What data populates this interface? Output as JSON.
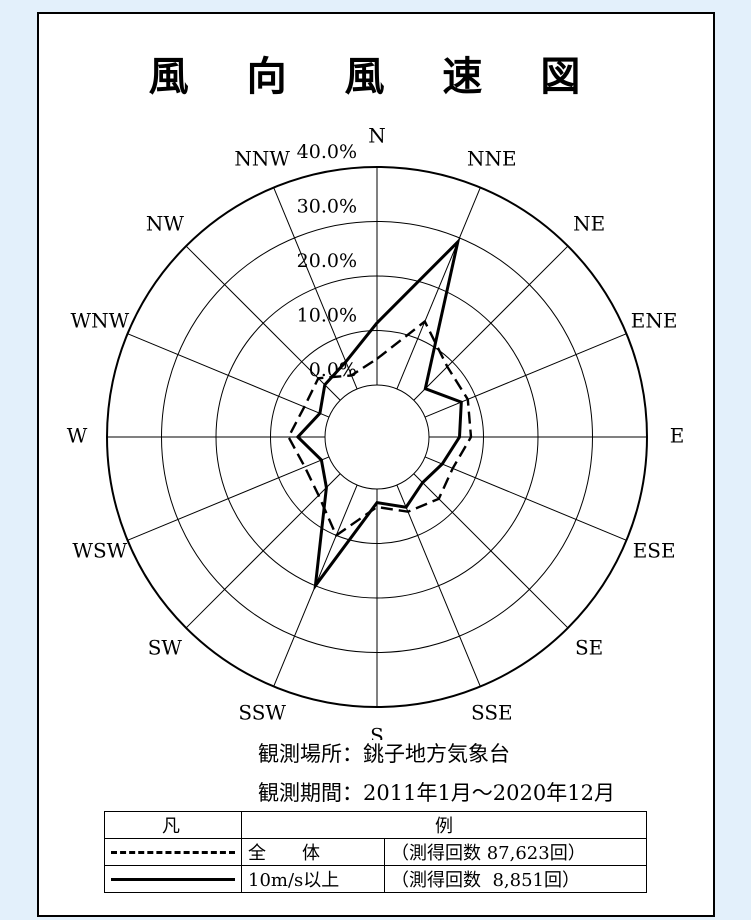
{
  "title": "風 向 風 速 図",
  "info": {
    "site": "観測場所：銚子地方気象台",
    "period": "観測期間：2011年1月～2020年12月"
  },
  "legend": {
    "header_symbol": "凡",
    "header_desc": "例",
    "rows": [
      {
        "name": "全　　体",
        "count": "（測得回数 87,623回）",
        "style": "dashed"
      },
      {
        "name": "10m/s以上",
        "count": "（測得回数  8,851回）",
        "style": "solid"
      }
    ]
  },
  "chart_data": {
    "type": "radar",
    "directions": [
      "N",
      "NNE",
      "NE",
      "ENE",
      "E",
      "ESE",
      "SE",
      "SSE",
      "S",
      "SSW",
      "SW",
      "WSW",
      "W",
      "WNW",
      "NW",
      "NNW"
    ],
    "radial_ticks": [
      "0.0%",
      "10.0%",
      "20.0%",
      "30.0%",
      "40.0%"
    ],
    "rlim": [
      0,
      40
    ],
    "series": [
      {
        "name": "全　　体",
        "style": "dashed",
        "values": [
          4.8,
          13.4,
          8.7,
          8.5,
          7.7,
          5.5,
          6.5,
          5.3,
          3.3,
          10.0,
          5.6,
          4.8,
          6.7,
          4.9,
          5.7,
          2.7
        ]
      },
      {
        "name": "10m/s以上",
        "style": "solid",
        "values": [
          11.4,
          29.2,
          3.0,
          7.2,
          5.6,
          3.4,
          2.3,
          4.4,
          2.5,
          20.0,
          3.6,
          1.5,
          5.0,
          1.8,
          4.0,
          5.4
        ]
      }
    ]
  }
}
